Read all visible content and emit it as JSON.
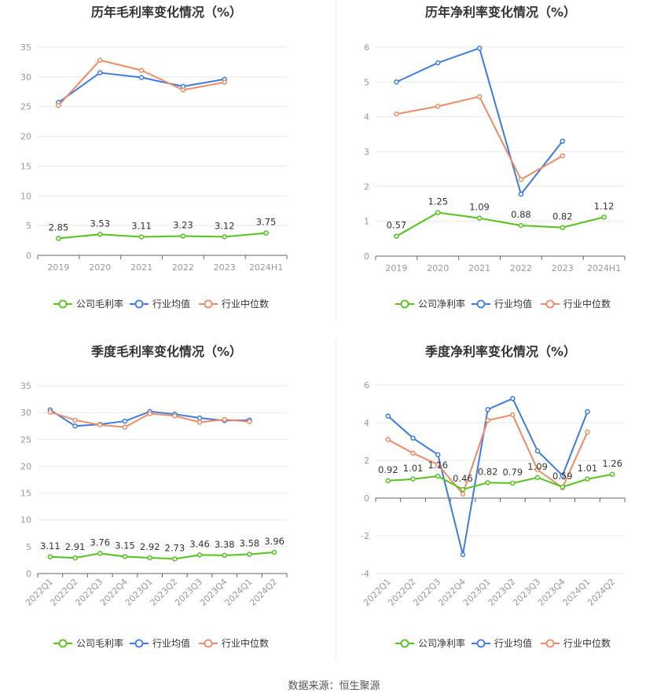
{
  "footer": "数据来源：恒生聚源",
  "colors": {
    "company": "#52c41a",
    "avg": "#3d7be4",
    "median": "#f08a64",
    "grid": "#e8e8e8",
    "axis": "#999999",
    "label": "#333333"
  },
  "legend": {
    "gross": "公司毛利率",
    "net": "公司净利率",
    "avg": "行业均值",
    "median": "行业中位数"
  },
  "chart_data": [
    {
      "type": "line",
      "title": "历年毛利率变化情况（%）",
      "categories": [
        "2019",
        "2020",
        "2021",
        "2022",
        "2023",
        "2024H1"
      ],
      "ylim": [
        0,
        35
      ],
      "yticks": [
        0,
        5,
        10,
        15,
        20,
        25,
        30,
        35
      ],
      "series": [
        {
          "name": "公司毛利率",
          "values": [
            2.85,
            3.53,
            3.11,
            3.23,
            3.12,
            3.75
          ],
          "labels": [
            "2.85",
            "3.53",
            "3.11",
            "3.23",
            "3.12",
            "3.75"
          ]
        },
        {
          "name": "行业均值",
          "values": [
            25.7,
            30.7,
            29.9,
            28.4,
            29.6,
            null
          ]
        },
        {
          "name": "行业中位数",
          "values": [
            25.2,
            32.8,
            31.1,
            27.8,
            29.1,
            null
          ]
        }
      ]
    },
    {
      "type": "line",
      "title": "历年净利率变化情况（%）",
      "categories": [
        "2019",
        "2020",
        "2021",
        "2022",
        "2023",
        "2024H1"
      ],
      "ylim": [
        0,
        6
      ],
      "yticks": [
        0,
        1,
        2,
        3,
        4,
        5,
        6
      ],
      "series": [
        {
          "name": "公司净利率",
          "values": [
            0.57,
            1.25,
            1.09,
            0.88,
            0.82,
            1.12
          ],
          "labels": [
            "0.57",
            "1.25",
            "1.09",
            "0.88",
            "0.82",
            "1.12"
          ]
        },
        {
          "name": "行业均值",
          "values": [
            5.0,
            5.55,
            5.97,
            1.78,
            3.3,
            null
          ]
        },
        {
          "name": "行业中位数",
          "values": [
            4.08,
            4.3,
            4.58,
            2.2,
            2.88,
            null
          ]
        }
      ]
    },
    {
      "type": "line",
      "title": "季度毛利率变化情况（%）",
      "categories": [
        "2022Q1",
        "2022Q2",
        "2022Q3",
        "2022Q4",
        "2023Q1",
        "2023Q2",
        "2023Q3",
        "2023Q4",
        "2024Q1",
        "2024Q2"
      ],
      "ylim": [
        0,
        35
      ],
      "yticks": [
        0,
        5,
        10,
        15,
        20,
        25,
        30,
        35
      ],
      "series": [
        {
          "name": "公司毛利率",
          "values": [
            3.11,
            2.91,
            3.76,
            3.15,
            2.92,
            2.73,
            3.46,
            3.38,
            3.58,
            3.96
          ],
          "labels": [
            "3.11",
            "2.91",
            "3.76",
            "3.15",
            "2.92",
            "2.73",
            "3.46",
            "3.38",
            "3.58",
            "3.96"
          ]
        },
        {
          "name": "行业均值",
          "values": [
            30.5,
            27.5,
            27.8,
            28.4,
            30.2,
            29.7,
            29.0,
            28.5,
            28.6,
            null
          ]
        },
        {
          "name": "行业中位数",
          "values": [
            30.1,
            28.6,
            27.7,
            27.3,
            29.8,
            29.4,
            28.2,
            28.7,
            28.3,
            null
          ]
        }
      ]
    },
    {
      "type": "line",
      "title": "季度净利率变化情况（%）",
      "categories": [
        "2022Q1",
        "2022Q2",
        "2022Q3",
        "2022Q4",
        "2023Q1",
        "2023Q2",
        "2023Q3",
        "2023Q4",
        "2024Q1",
        "2024Q2"
      ],
      "ylim": [
        -4,
        6
      ],
      "yticks": [
        -4,
        -2,
        0,
        2,
        4,
        6
      ],
      "series": [
        {
          "name": "公司净利率",
          "values": [
            0.92,
            1.01,
            1.16,
            0.46,
            0.82,
            0.79,
            1.09,
            0.59,
            1.01,
            1.26
          ],
          "labels": [
            "0.92",
            "1.01",
            "1.16",
            "0.46",
            "0.82",
            "0.79",
            "1.09",
            "0.59",
            "1.01",
            "1.26"
          ]
        },
        {
          "name": "行业均值",
          "values": [
            4.35,
            3.18,
            2.3,
            -3.0,
            4.7,
            5.28,
            2.5,
            1.2,
            4.58,
            null
          ]
        },
        {
          "name": "行业中位数",
          "values": [
            3.1,
            2.38,
            1.78,
            0.22,
            4.12,
            4.42,
            1.5,
            0.55,
            3.5,
            null
          ]
        }
      ]
    }
  ]
}
